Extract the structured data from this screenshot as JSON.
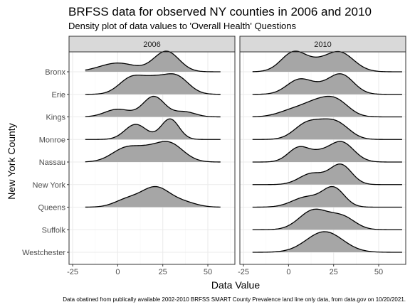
{
  "chart_data": {
    "type": "ridgeline-density",
    "title": "BRFSS data for observed NY counties in 2006 and 2010",
    "subtitle": "Density plot of data values to 'Overall Health' Questions",
    "xlabel": "Data Value",
    "ylabel": "New York County",
    "caption": "Data obatined from publically available 2002-2010 BRFSS SMART County Prevalence land line only data, from data.gov on 10/20/2021.",
    "xlim": [
      -27,
      65
    ],
    "x_ticks": [
      -25,
      0,
      25,
      50
    ],
    "grid": true,
    "counties": [
      "Bronx",
      "Erie",
      "Kings",
      "Monroe",
      "Nassau",
      "New York",
      "Queens",
      "Suffolk",
      "Westchester"
    ],
    "panels": [
      {
        "label": "2006",
        "series": [
          {
            "name": "Bronx",
            "x_range": [
              -18,
              57
            ],
            "components": [
              [
                0,
                10,
                0.3
              ],
              [
                27,
                7,
                0.7
              ]
            ]
          },
          {
            "name": "Erie",
            "x_range": [
              -18,
              57
            ],
            "components": [
              [
                8,
                7,
                0.55
              ],
              [
                32,
                7,
                0.6
              ],
              [
                20,
                6,
                0.35
              ]
            ]
          },
          {
            "name": "Kings",
            "x_range": [
              -18,
              57
            ],
            "components": [
              [
                0,
                7,
                0.3
              ],
              [
                20,
                6,
                0.8
              ],
              [
                37,
                6,
                0.2
              ]
            ]
          },
          {
            "name": "Monroe",
            "x_range": [
              -18,
              57
            ],
            "components": [
              [
                10,
                6,
                0.7
              ],
              [
                29,
                5,
                0.95
              ]
            ]
          },
          {
            "name": "Nassau",
            "x_range": [
              -18,
              57
            ],
            "components": [
              [
                5,
                8,
                0.55
              ],
              [
                28,
                8,
                0.75
              ],
              [
                16,
                6,
                0.2
              ]
            ]
          },
          {
            "name": "Queens",
            "x_range": [
              -18,
              57
            ],
            "components": [
              [
                5,
                7,
                0.25
              ],
              [
                21,
                8,
                0.7
              ],
              [
                37,
                7,
                0.15
              ]
            ]
          }
        ]
      },
      {
        "label": "2010",
        "series": [
          {
            "name": "Bronx",
            "x_range": [
              -20,
              63
            ],
            "components": [
              [
                3,
                7,
                0.6
              ],
              [
                28,
                8,
                0.6
              ],
              [
                15,
                6,
                0.15
              ]
            ]
          },
          {
            "name": "Erie",
            "x_range": [
              -20,
              63
            ],
            "components": [
              [
                6,
                7,
                0.55
              ],
              [
                29,
                7,
                0.75
              ],
              [
                17,
                6,
                0.15
              ]
            ]
          },
          {
            "name": "Kings",
            "x_range": [
              -20,
              63
            ],
            "components": [
              [
                2,
                8,
                0.25
              ],
              [
                16,
                8,
                0.55
              ],
              [
                27,
                7,
                0.55
              ]
            ]
          },
          {
            "name": "Monroe",
            "x_range": [
              -20,
              63
            ],
            "components": [
              [
                10,
                7,
                0.65
              ],
              [
                27,
                7,
                0.65
              ],
              [
                19,
                6,
                0.25
              ]
            ]
          },
          {
            "name": "Nassau",
            "x_range": [
              -20,
              63
            ],
            "components": [
              [
                6,
                6,
                0.55
              ],
              [
                29,
                7,
                0.75
              ],
              [
                17,
                5,
                0.2
              ]
            ]
          },
          {
            "name": "New York",
            "x_range": [
              -20,
              63
            ],
            "components": [
              [
                13,
                7,
                0.45
              ],
              [
                29,
                6,
                0.8
              ]
            ]
          },
          {
            "name": "Queens",
            "x_range": [
              -20,
              63
            ],
            "components": [
              [
                10,
                8,
                0.4
              ],
              [
                25,
                6,
                0.75
              ]
            ]
          },
          {
            "name": "Suffolk",
            "x_range": [
              -20,
              63
            ],
            "components": [
              [
                14,
                8,
                0.8
              ],
              [
                30,
                7,
                0.5
              ]
            ]
          },
          {
            "name": "Westchester",
            "x_range": [
              -20,
              63
            ],
            "components": [
              [
                20,
                10,
                0.85
              ]
            ]
          }
        ]
      }
    ]
  },
  "colors": {
    "ridge_fill": "#a6a6a6",
    "ridge_line": "#000000",
    "strip_fill": "#d9d9d9",
    "panel_border": "#333333",
    "grid_major": "#ebebeb",
    "grid_minor": "#f5f5f5"
  }
}
